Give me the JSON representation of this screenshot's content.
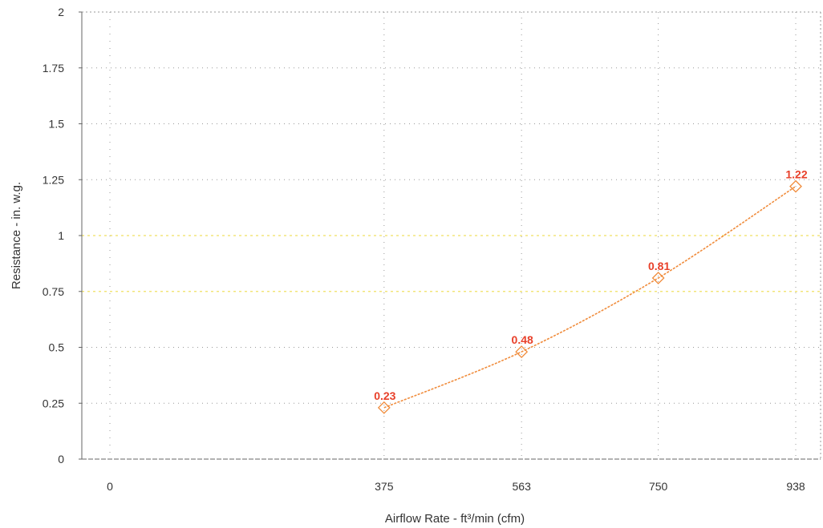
{
  "chart_data": {
    "type": "line",
    "title": "",
    "xlabel": "Airflow Rate - ft³/min (cfm)",
    "ylabel": "Resistance - in. w.g.",
    "x_tick_labels": [
      "0",
      "375",
      "563",
      "750",
      "938"
    ],
    "y_tick_labels": [
      "0",
      "0.25",
      "0.5",
      "0.75",
      "1",
      "1.25",
      "1.5",
      "1.75",
      "2"
    ],
    "xlim": [
      0,
      938
    ],
    "ylim": [
      0,
      2
    ],
    "grid": true,
    "legend": "none",
    "series": [
      {
        "x": [
          375,
          563,
          750,
          938
        ],
        "values": [
          0.23,
          0.48,
          0.81,
          1.22
        ],
        "data_labels": [
          "0.23",
          "0.48",
          "0.81",
          "1.22"
        ],
        "marker": "diamond",
        "color": "#f08c3c"
      }
    ],
    "colors": {
      "line": "#f08c3c",
      "marker": "#f08c3c",
      "data_label": "#e8402a",
      "axis": "#666666",
      "grid": "#999999",
      "grid_highlight": "#f0e060"
    }
  }
}
